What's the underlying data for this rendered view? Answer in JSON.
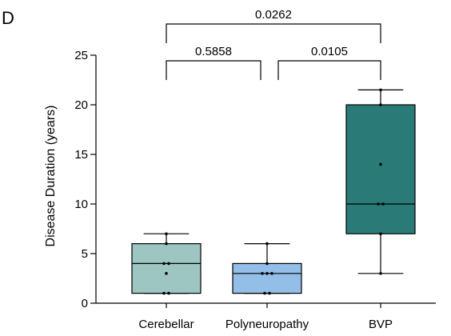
{
  "panel_label": "D",
  "chart_data": {
    "type": "box",
    "ylabel": "Disease Duration (years)",
    "ylim": [
      0,
      25
    ],
    "yticks": [
      0,
      5,
      10,
      15,
      20,
      25
    ],
    "categories": [
      "Cerebellar",
      "Polyneuropathy",
      "BVP"
    ],
    "boxes": [
      {
        "category": "Cerebellar",
        "color": "#9dc5c1",
        "min": 1,
        "q1": 1,
        "median": 4,
        "q3": 6,
        "max": 7,
        "points": [
          1,
          1,
          3,
          4,
          4,
          6,
          7
        ]
      },
      {
        "category": "Polyneuropathy",
        "color": "#92bee8",
        "min": 1,
        "q1": 1,
        "median": 3,
        "q3": 4,
        "max": 6,
        "points": [
          1,
          1,
          3,
          3,
          3,
          4,
          6
        ]
      },
      {
        "category": "BVP",
        "color": "#2a7b78",
        "min": 3,
        "q1": 7,
        "median": 10,
        "q3": 20,
        "max": 21.5,
        "points": [
          3,
          7,
          10,
          10,
          14,
          20,
          21.5
        ]
      }
    ],
    "comparisons": [
      {
        "from": "Cerebellar",
        "to": "BVP",
        "label": "0.0262"
      },
      {
        "from": "Cerebellar",
        "to": "Polyneuropathy",
        "label": "0.5858"
      },
      {
        "from": "Polyneuropathy",
        "to": "BVP",
        "label": "0.0105"
      }
    ]
  }
}
